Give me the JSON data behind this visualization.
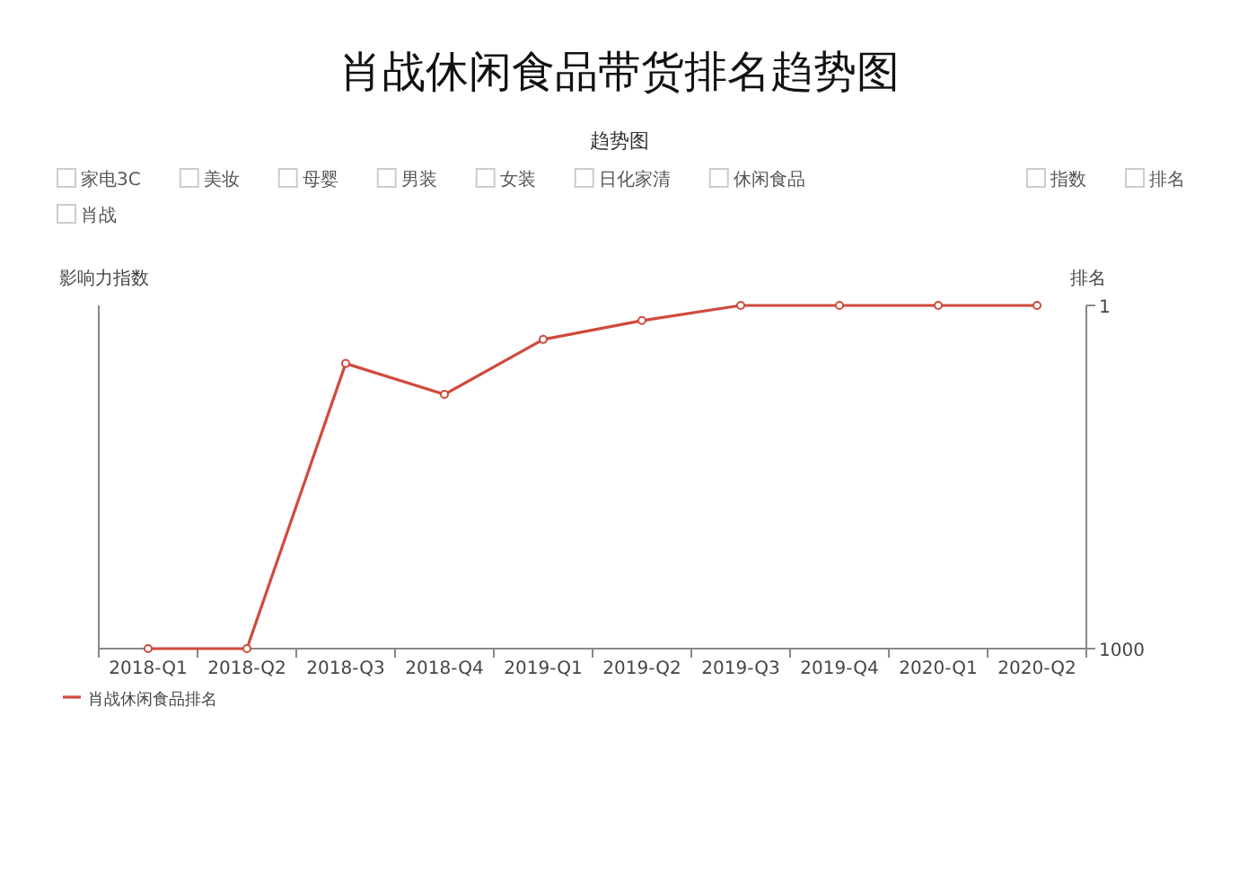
{
  "chart_data": {
    "type": "line",
    "title": "肖战休闲食品带货排名趋势图",
    "subtitle": "趋势图",
    "ylabel": "影响力指数",
    "y2label": "排名",
    "annotations": [
      "家电3C",
      "美妆",
      "母婴",
      "男装",
      "女装",
      "日化家清",
      "休闲食品",
      "指数",
      "排名",
      "肖战"
    ],
    "categories": [
      "2018-Q1",
      "2018-Q2",
      "2018-Q3",
      "2018-Q4",
      "2019-Q1",
      "2019-Q2",
      "2019-Q3",
      "2019-Q4",
      "2020-Q1",
      "2020-Q2"
    ],
    "series": [
      {
        "name": "肖战休闲食品排名",
        "color": "#d04a3c",
        "axis": "y2",
        "values": [
          1000,
          1000,
          170,
          260,
          100,
          45,
          1,
          1,
          1,
          1
        ]
      }
    ],
    "y2lim": [
      1000,
      1
    ],
    "y2ticks": [
      1,
      1000
    ],
    "marker": "circle",
    "legend": "bottom left",
    "grid": false
  }
}
